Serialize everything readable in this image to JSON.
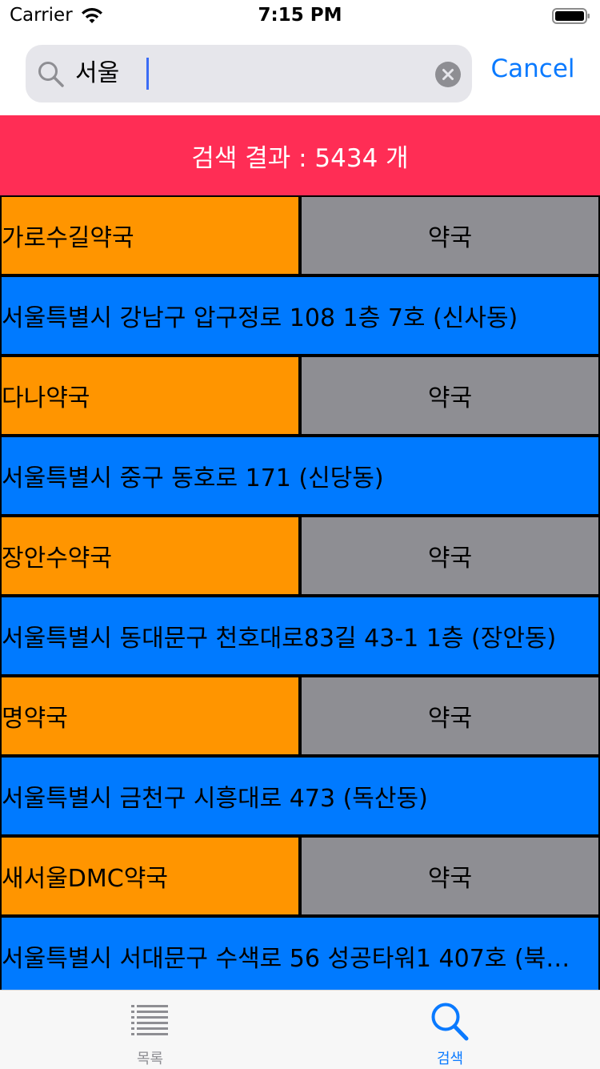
{
  "status_bar": {
    "carrier": "Carrier",
    "time": "7:15 PM",
    "icons": [
      "wifi-icon",
      "battery-icon"
    ]
  },
  "search": {
    "value": "서울",
    "cancel_label": "Cancel",
    "icons": [
      "search-icon",
      "clear-icon"
    ]
  },
  "result_header": {
    "text": "검색 결과 : 5434 개",
    "color": "#ff2d55"
  },
  "colors": {
    "name_cell": "#ff9500",
    "type_cell": "#8e8e93",
    "address_cell": "#007aff",
    "accent": "#0a7aff"
  },
  "results": [
    {
      "name": "가로수길약국",
      "type": "약국",
      "address": "서울특별시 강남구 압구정로 108 1층 7호 (신사동)"
    },
    {
      "name": "다나약국",
      "type": "약국",
      "address": "서울특별시 중구 동호로 171 (신당동)"
    },
    {
      "name": "장안수약국",
      "type": "약국",
      "address": "서울특별시 동대문구 천호대로83길 43-1 1층 (장안동)"
    },
    {
      "name": "명약국",
      "type": "약국",
      "address": "서울특별시 금천구 시흥대로 473 (독산동)"
    },
    {
      "name": "새서울DMC약국",
      "type": "약국",
      "address": "서울특별시 서대문구 수색로 56 성공타워1 407호 (북…"
    }
  ],
  "tab_bar": {
    "tabs": [
      {
        "label": "목록",
        "icon": "list-icon",
        "selected": false
      },
      {
        "label": "검색",
        "icon": "search-icon",
        "selected": true
      }
    ]
  }
}
